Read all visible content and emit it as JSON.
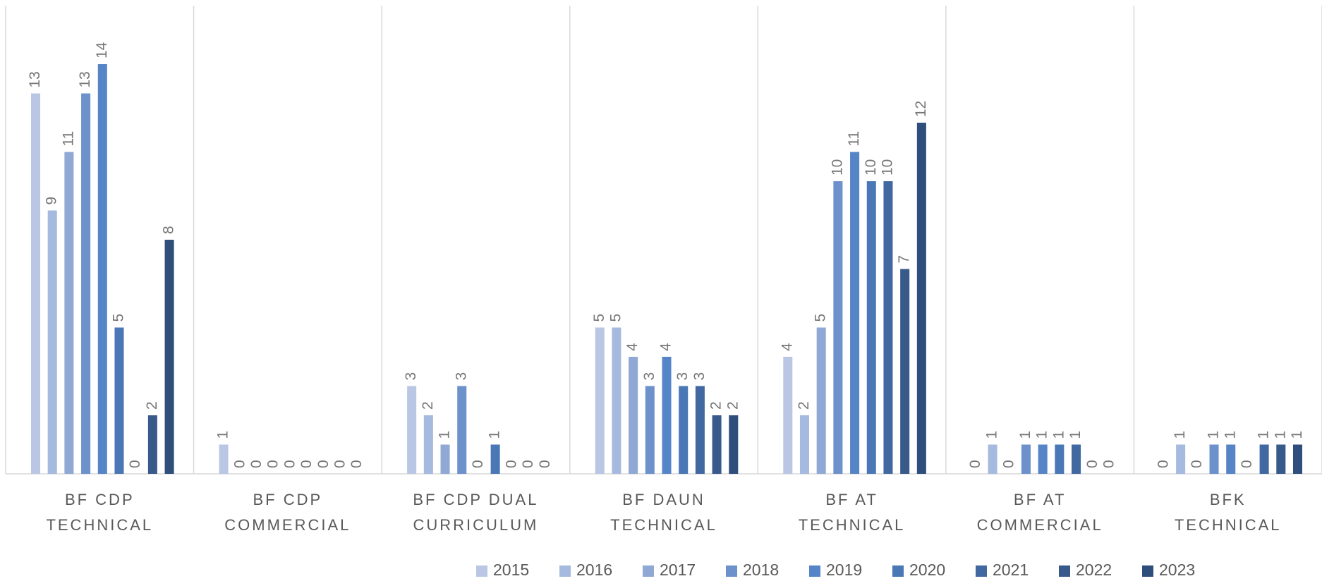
{
  "chart_data": {
    "type": "bar",
    "categories": [
      [
        "BF CDP",
        "TECHNICAL"
      ],
      [
        "BF CDP",
        "COMMERCIAL"
      ],
      [
        "BF CDP DUAL",
        "CURRICULUM"
      ],
      [
        "BF DAUN",
        "TECHNICAL"
      ],
      [
        "BF AT",
        "TECHNICAL"
      ],
      [
        "BF AT",
        "COMMERCIAL"
      ],
      [
        "BFK",
        "TECHNICAL"
      ]
    ],
    "series": [
      {
        "name": "2015",
        "color": "#b9c7e4",
        "values": [
          13,
          1,
          3,
          5,
          4,
          0,
          0
        ]
      },
      {
        "name": "2016",
        "color": "#a6b9de",
        "values": [
          9,
          0,
          2,
          5,
          2,
          1,
          1
        ]
      },
      {
        "name": "2017",
        "color": "#8fa8d4",
        "values": [
          11,
          0,
          1,
          4,
          5,
          0,
          0
        ]
      },
      {
        "name": "2018",
        "color": "#6d91cb",
        "values": [
          13,
          0,
          3,
          3,
          10,
          1,
          1
        ]
      },
      {
        "name": "2019",
        "color": "#5685c7",
        "values": [
          14,
          0,
          0,
          4,
          11,
          1,
          1
        ]
      },
      {
        "name": "2020",
        "color": "#4a77b6",
        "values": [
          5,
          0,
          1,
          3,
          10,
          1,
          0
        ]
      },
      {
        "name": "2021",
        "color": "#4168a0",
        "values": [
          0,
          0,
          0,
          3,
          10,
          1,
          1
        ]
      },
      {
        "name": "2022",
        "color": "#385a8b",
        "values": [
          2,
          0,
          0,
          2,
          7,
          0,
          1
        ]
      },
      {
        "name": "2023",
        "color": "#2f4e7c",
        "values": [
          8,
          0,
          0,
          2,
          12,
          0,
          1
        ]
      }
    ],
    "ylim": [
      0,
      16
    ],
    "legend": "bottom"
  }
}
